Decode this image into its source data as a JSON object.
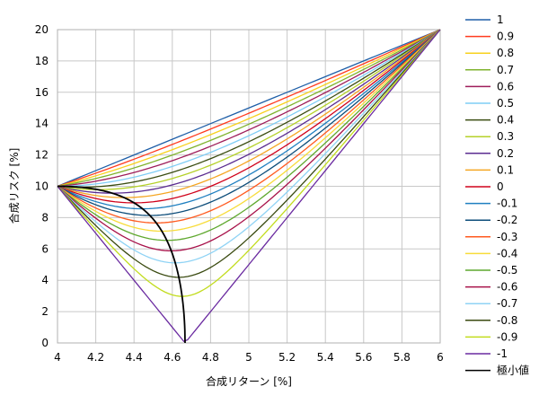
{
  "chart_data": {
    "type": "line",
    "title": "",
    "xlabel": "合成リターン [%]",
    "ylabel": "合成リスク [%]",
    "xlim": [
      4,
      6
    ],
    "ylim": [
      0,
      20
    ],
    "x_ticks": [
      "4",
      "4.2",
      "4.4",
      "4.6",
      "4.8",
      "5",
      "5.2",
      "5.4",
      "5.6",
      "5.8",
      "6"
    ],
    "y_ticks": [
      "0",
      "2",
      "4",
      "6",
      "8",
      "10",
      "12",
      "14",
      "16",
      "18",
      "20"
    ],
    "grid": true,
    "legend_position": "right",
    "asset_a": {
      "return": 4,
      "risk": 10
    },
    "asset_b": {
      "return": 6,
      "risk": 20
    },
    "series": [
      {
        "name": "1",
        "rho": 1,
        "color": "#1f5fa8"
      },
      {
        "name": "0.9",
        "rho": 0.9,
        "color": "#ff3b1f"
      },
      {
        "name": "0.8",
        "rho": 0.8,
        "color": "#f7d11e"
      },
      {
        "name": "0.7",
        "rho": 0.7,
        "color": "#7fb32e"
      },
      {
        "name": "0.6",
        "rho": 0.6,
        "color": "#9e1d5a"
      },
      {
        "name": "0.5",
        "rho": 0.5,
        "color": "#7fcdf5"
      },
      {
        "name": "0.4",
        "rho": 0.4,
        "color": "#3b4d12"
      },
      {
        "name": "0.3",
        "rho": 0.3,
        "color": "#b5d12a"
      },
      {
        "name": "0.2",
        "rho": 0.2,
        "color": "#5b2d91"
      },
      {
        "name": "0.1",
        "rho": 0.1,
        "color": "#f5a623"
      },
      {
        "name": "0",
        "rho": 0,
        "color": "#d0021b"
      },
      {
        "name": "-0.1",
        "rho": -0.1,
        "color": "#1f7fc0"
      },
      {
        "name": "-0.2",
        "rho": -0.2,
        "color": "#0d4d7a"
      },
      {
        "name": "-0.3",
        "rho": -0.3,
        "color": "#ff5a1f"
      },
      {
        "name": "-0.4",
        "rho": -0.4,
        "color": "#f7dc3a"
      },
      {
        "name": "-0.5",
        "rho": -0.5,
        "color": "#5fa82e"
      },
      {
        "name": "-0.6",
        "rho": -0.6,
        "color": "#a8124a"
      },
      {
        "name": "-0.7",
        "rho": -0.7,
        "color": "#8fd3f5"
      },
      {
        "name": "-0.8",
        "rho": -0.8,
        "color": "#3a4a10"
      },
      {
        "name": "-0.9",
        "rho": -0.9,
        "color": "#c2dc1e"
      },
      {
        "name": "-1",
        "rho": -1,
        "color": "#6a2aa0"
      }
    ],
    "min_curve": {
      "name": "極小値",
      "color": "#000000"
    }
  }
}
